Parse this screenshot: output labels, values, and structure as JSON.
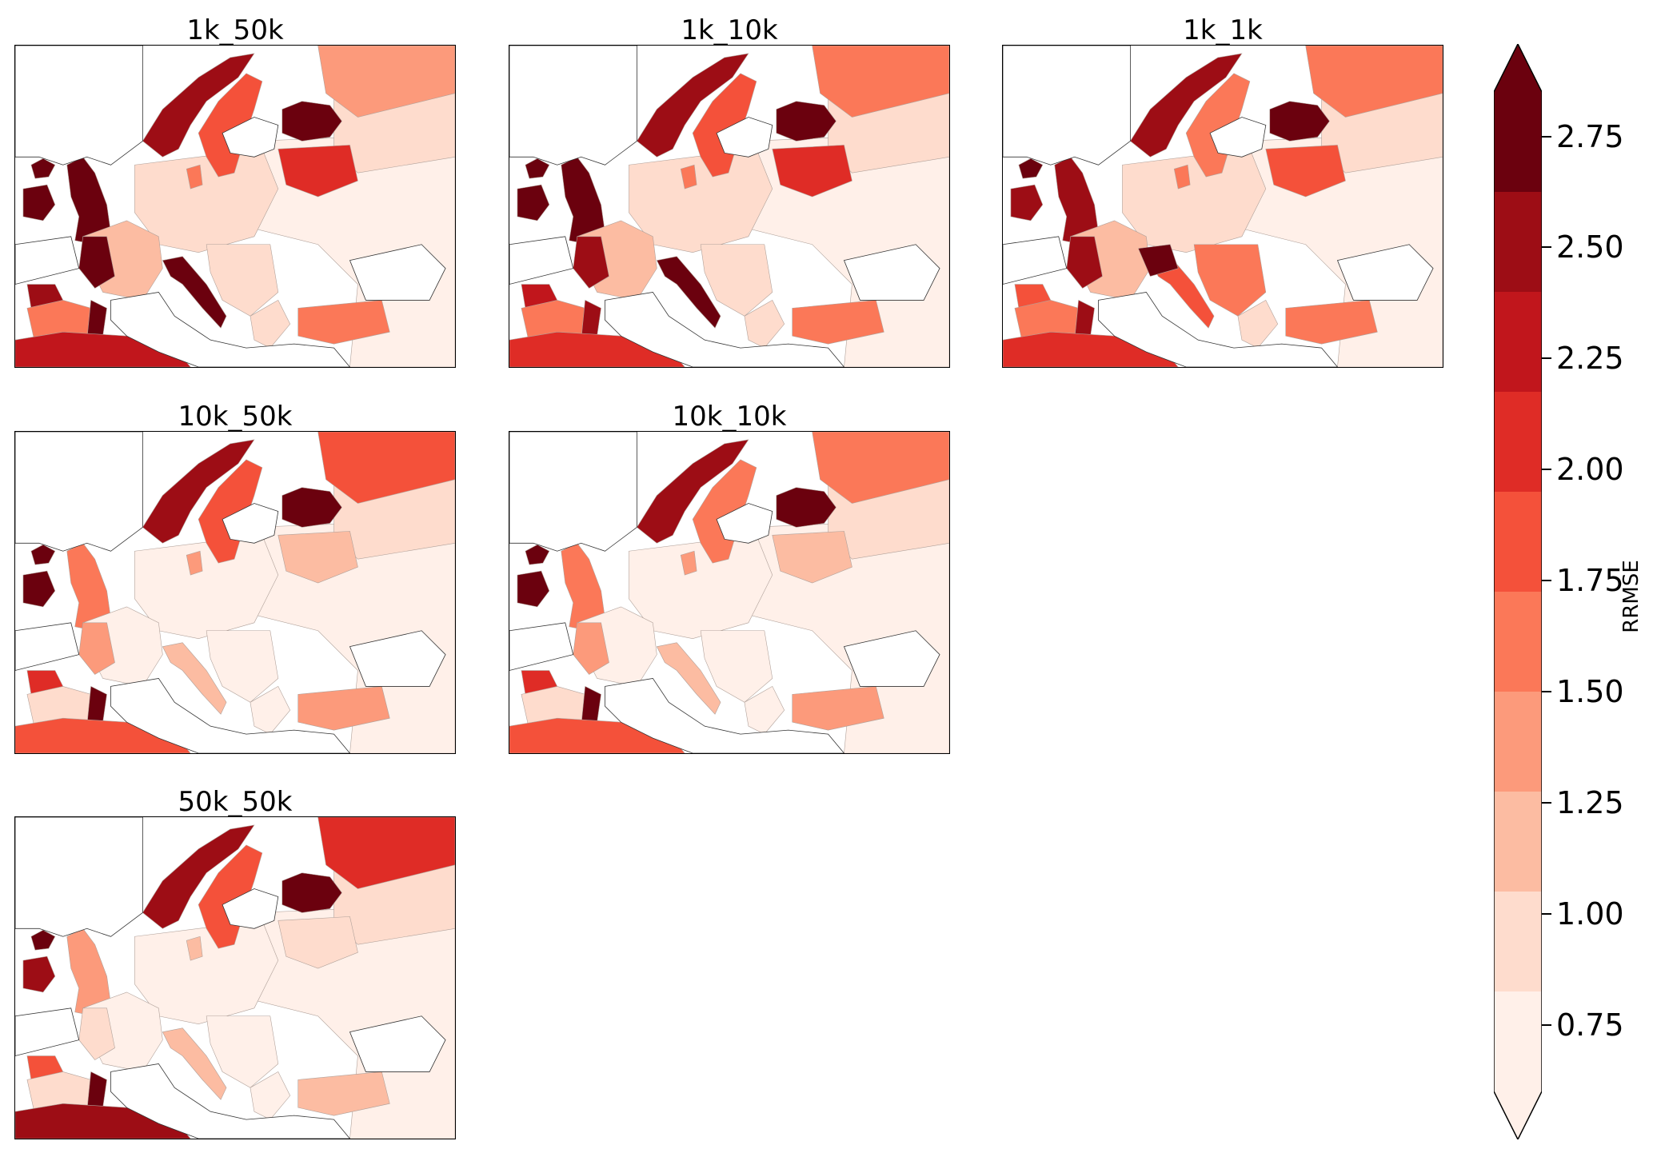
{
  "panels": [
    {
      "title": "1k_50k",
      "bins": {
        "iceland": 9,
        "ireland": 9,
        "gb": 9,
        "norway": 8,
        "sweden": 5,
        "finland": 9,
        "balt": 6,
        "russia_nw": 3,
        "russia": 1,
        "central": 1,
        "east": 0,
        "france": 2,
        "france_w": 9,
        "spain_nw": 8,
        "spain": 4,
        "spain_e": 9,
        "spain_s": 7,
        "italy": 9,
        "balkans": 1,
        "greece": 1,
        "turkey": 4,
        "africa": 7,
        "denmark": 4
      }
    },
    {
      "title": "1k_10k",
      "bins": {
        "iceland": 9,
        "ireland": 9,
        "gb": 9,
        "norway": 8,
        "sweden": 5,
        "finland": 9,
        "balt": 6,
        "russia_nw": 4,
        "russia": 1,
        "central": 1,
        "east": 0,
        "france": 2,
        "france_w": 8,
        "spain_nw": 7,
        "spain": 4,
        "spain_e": 8,
        "spain_s": 7,
        "italy": 9,
        "balkans": 1,
        "greece": 1,
        "turkey": 4,
        "africa": 6,
        "denmark": 4
      }
    },
    {
      "title": "1k_1k",
      "bins": {
        "iceland": 9,
        "ireland": 8,
        "gb": 8,
        "norway": 8,
        "sweden": 4,
        "finland": 9,
        "balt": 5,
        "russia_nw": 4,
        "russia": 1,
        "central": 1,
        "east": 0,
        "france": 2,
        "france_w": 8,
        "spain_nw": 5,
        "spain": 4,
        "spain_e": 8,
        "spain_s": 4,
        "italy": 5,
        "alps": 9,
        "balkans": 4,
        "greece": 1,
        "turkey": 4,
        "africa": 6,
        "denmark": 4
      }
    },
    {
      "title": "10k_50k",
      "bins": {
        "iceland": 9,
        "ireland": 9,
        "gb": 4,
        "norway": 8,
        "sweden": 5,
        "finland": 9,
        "balt": 2,
        "russia_nw": 5,
        "russia": 1,
        "central": 0,
        "east": 0,
        "france": 0,
        "france_w": 3,
        "spain_nw": 6,
        "spain": 1,
        "spain_e": 9,
        "spain_s": 1,
        "italy": 2,
        "balkans": 0,
        "greece": 0,
        "turkey": 3,
        "africa": 5,
        "denmark": 3
      }
    },
    {
      "title": "10k_10k",
      "bins": {
        "iceland": 9,
        "ireland": 9,
        "gb": 4,
        "norway": 8,
        "sweden": 4,
        "finland": 9,
        "balt": 2,
        "russia_nw": 4,
        "russia": 1,
        "central": 0,
        "east": 0,
        "france": 0,
        "france_w": 3,
        "spain_nw": 6,
        "spain": 1,
        "spain_e": 9,
        "spain_s": 1,
        "italy": 2,
        "balkans": 0,
        "greece": 0,
        "turkey": 3,
        "africa": 5,
        "denmark": 3
      }
    },
    {
      "title": "50k_50k",
      "bins": {
        "iceland": 9,
        "ireland": 8,
        "gb": 3,
        "norway": 8,
        "sweden": 5,
        "finland": 9,
        "balt": 1,
        "russia_nw": 6,
        "russia": 1,
        "central": 0,
        "east": 0,
        "france": 0,
        "france_w": 1,
        "spain_nw": 5,
        "spain": 1,
        "spain_e": 9,
        "spain_s": 1,
        "italy": 2,
        "balkans": 0,
        "greece": 0,
        "turkey": 2,
        "africa": 8,
        "denmark": 2
      }
    }
  ],
  "colormap": [
    "#fff0e9",
    "#fedccd",
    "#fcbca2",
    "#fc9a7b",
    "#fb7858",
    "#f4513a",
    "#df2c26",
    "#c1161c",
    "#9d0d15",
    "#6b010e"
  ],
  "colorbar": {
    "label": "RRMSE",
    "ticks": [
      "0.75",
      "1.00",
      "1.25",
      "1.50",
      "1.75",
      "2.00",
      "2.25",
      "2.50",
      "2.75"
    ],
    "tick_values": [
      0.75,
      1.0,
      1.25,
      1.5,
      1.75,
      2.0,
      2.25,
      2.5,
      2.75
    ],
    "range": [
      0.6,
      2.85
    ],
    "extend": "both"
  }
}
